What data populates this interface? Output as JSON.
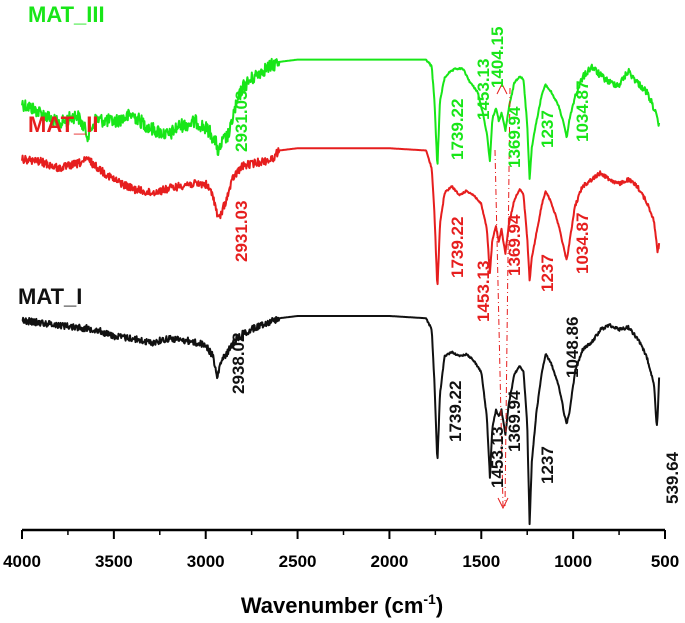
{
  "chart_data": {
    "type": "line",
    "title": "",
    "xlabel": "Wavenumber (cm",
    "xlabel_sup": "-1",
    "xlabel_close": ")",
    "ylabel": "",
    "xlim": [
      4000,
      500
    ],
    "x_ticks": [
      4000,
      3500,
      3000,
      2500,
      2000,
      1500,
      1000,
      500
    ],
    "x_tick_labels": [
      "4000",
      "3500",
      "3000",
      "2500",
      "2000",
      "1500",
      "1000",
      "500"
    ],
    "y_axis_visible": false,
    "legend": "none",
    "series": [
      {
        "name": "MAT_III",
        "color": "#18e618",
        "noise": 1,
        "points": [
          [
            4000,
            0.62
          ],
          [
            3900,
            0.7
          ],
          [
            3800,
            0.8
          ],
          [
            3700,
            0.72
          ],
          [
            3640,
            0.9
          ],
          [
            3600,
            0.76
          ],
          [
            3500,
            0.78
          ],
          [
            3400,
            0.72
          ],
          [
            3300,
            0.84
          ],
          [
            3200,
            0.9
          ],
          [
            3150,
            0.82
          ],
          [
            3050,
            0.78
          ],
          [
            2980,
            0.86
          ],
          [
            2940,
            0.98
          ],
          [
            2931,
            1.06
          ],
          [
            2910,
            0.96
          ],
          [
            2870,
            0.88
          ],
          [
            2850,
            0.72
          ],
          [
            2800,
            0.48
          ],
          [
            2700,
            0.34
          ],
          [
            2600,
            0.26
          ],
          [
            2500,
            0.24
          ],
          [
            2000,
            0.24
          ],
          [
            1800,
            0.24
          ],
          [
            1770,
            0.3
          ],
          [
            1755,
            0.6
          ],
          [
            1739,
            1.18
          ],
          [
            1725,
            0.6
          ],
          [
            1700,
            0.4
          ],
          [
            1680,
            0.36
          ],
          [
            1640,
            0.32
          ],
          [
            1600,
            0.32
          ],
          [
            1560,
            0.44
          ],
          [
            1520,
            0.52
          ],
          [
            1490,
            0.72
          ],
          [
            1470,
            0.88
          ],
          [
            1453,
            1.12
          ],
          [
            1440,
            0.76
          ],
          [
            1420,
            0.66
          ],
          [
            1404,
            0.78
          ],
          [
            1390,
            0.7
          ],
          [
            1369,
            0.86
          ],
          [
            1350,
            0.66
          ],
          [
            1320,
            0.44
          ],
          [
            1290,
            0.38
          ],
          [
            1270,
            0.42
          ],
          [
            1250,
            0.8
          ],
          [
            1237,
            1.28
          ],
          [
            1225,
            1.0
          ],
          [
            1200,
            0.78
          ],
          [
            1170,
            0.54
          ],
          [
            1150,
            0.46
          ],
          [
            1120,
            0.52
          ],
          [
            1080,
            0.64
          ],
          [
            1050,
            0.8
          ],
          [
            1035,
            0.92
          ],
          [
            1020,
            0.76
          ],
          [
            990,
            0.56
          ],
          [
            950,
            0.4
          ],
          [
            900,
            0.3
          ],
          [
            850,
            0.38
          ],
          [
            800,
            0.44
          ],
          [
            750,
            0.46
          ],
          [
            700,
            0.34
          ],
          [
            650,
            0.44
          ],
          [
            600,
            0.52
          ],
          [
            560,
            0.66
          ],
          [
            540,
            0.78
          ],
          [
            530,
            0.82
          ]
        ]
      },
      {
        "name": "MAT_II",
        "color": "#e61e1e",
        "noise": 0.6,
        "points": [
          [
            4000,
            0.12
          ],
          [
            3900,
            0.14
          ],
          [
            3800,
            0.2
          ],
          [
            3700,
            0.16
          ],
          [
            3640,
            0.12
          ],
          [
            3600,
            0.18
          ],
          [
            3500,
            0.3
          ],
          [
            3400,
            0.38
          ],
          [
            3300,
            0.42
          ],
          [
            3200,
            0.38
          ],
          [
            3100,
            0.34
          ],
          [
            3000,
            0.34
          ],
          [
            2960,
            0.44
          ],
          [
            2931,
            0.66
          ],
          [
            2910,
            0.58
          ],
          [
            2880,
            0.44
          ],
          [
            2850,
            0.28
          ],
          [
            2800,
            0.18
          ],
          [
            2700,
            0.14
          ],
          [
            2640,
            0.12
          ],
          [
            2600,
            0.04
          ],
          [
            2500,
            0.02
          ],
          [
            2000,
            0.02
          ],
          [
            1800,
            0.04
          ],
          [
            1770,
            0.2
          ],
          [
            1755,
            0.6
          ],
          [
            1739,
            1.28
          ],
          [
            1725,
            0.7
          ],
          [
            1700,
            0.42
          ],
          [
            1660,
            0.36
          ],
          [
            1620,
            0.44
          ],
          [
            1580,
            0.4
          ],
          [
            1540,
            0.44
          ],
          [
            1500,
            0.52
          ],
          [
            1470,
            0.74
          ],
          [
            1453,
            1.14
          ],
          [
            1440,
            0.84
          ],
          [
            1420,
            0.72
          ],
          [
            1404,
            0.86
          ],
          [
            1390,
            0.74
          ],
          [
            1369,
            0.96
          ],
          [
            1350,
            0.7
          ],
          [
            1320,
            0.48
          ],
          [
            1290,
            0.38
          ],
          [
            1270,
            0.44
          ],
          [
            1250,
            0.82
          ],
          [
            1237,
            1.2
          ],
          [
            1225,
            1.0
          ],
          [
            1200,
            0.78
          ],
          [
            1170,
            0.52
          ],
          [
            1150,
            0.4
          ],
          [
            1120,
            0.5
          ],
          [
            1080,
            0.7
          ],
          [
            1050,
            0.92
          ],
          [
            1035,
            1.02
          ],
          [
            1020,
            0.86
          ],
          [
            990,
            0.54
          ],
          [
            950,
            0.36
          ],
          [
            900,
            0.3
          ],
          [
            850,
            0.24
          ],
          [
            800,
            0.3
          ],
          [
            750,
            0.34
          ],
          [
            700,
            0.3
          ],
          [
            650,
            0.36
          ],
          [
            600,
            0.5
          ],
          [
            560,
            0.66
          ],
          [
            540,
            0.96
          ],
          [
            530,
            0.84
          ]
        ]
      },
      {
        "name": "MAT_I",
        "color": "#111111",
        "noise": 0.5,
        "points": [
          [
            4000,
            0.04
          ],
          [
            3900,
            0.06
          ],
          [
            3800,
            0.08
          ],
          [
            3700,
            0.1
          ],
          [
            3600,
            0.12
          ],
          [
            3500,
            0.18
          ],
          [
            3400,
            0.2
          ],
          [
            3300,
            0.24
          ],
          [
            3200,
            0.2
          ],
          [
            3100,
            0.22
          ],
          [
            3000,
            0.26
          ],
          [
            2960,
            0.36
          ],
          [
            2938,
            0.56
          ],
          [
            2920,
            0.42
          ],
          [
            2880,
            0.32
          ],
          [
            2850,
            0.24
          ],
          [
            2800,
            0.16
          ],
          [
            2700,
            0.08
          ],
          [
            2600,
            0.02
          ],
          [
            2500,
            0.0
          ],
          [
            2000,
            0.0
          ],
          [
            1800,
            0.02
          ],
          [
            1770,
            0.12
          ],
          [
            1755,
            0.6
          ],
          [
            1739,
            1.32
          ],
          [
            1725,
            0.7
          ],
          [
            1700,
            0.36
          ],
          [
            1660,
            0.32
          ],
          [
            1620,
            0.36
          ],
          [
            1580,
            0.34
          ],
          [
            1540,
            0.4
          ],
          [
            1500,
            0.5
          ],
          [
            1470,
            0.9
          ],
          [
            1453,
            1.44
          ],
          [
            1440,
            1.0
          ],
          [
            1420,
            0.84
          ],
          [
            1404,
            0.9
          ],
          [
            1390,
            0.84
          ],
          [
            1369,
            1.06
          ],
          [
            1350,
            0.78
          ],
          [
            1320,
            0.52
          ],
          [
            1290,
            0.44
          ],
          [
            1270,
            0.5
          ],
          [
            1250,
            0.96
          ],
          [
            1237,
            1.86
          ],
          [
            1225,
            1.3
          ],
          [
            1200,
            0.86
          ],
          [
            1170,
            0.5
          ],
          [
            1150,
            0.34
          ],
          [
            1120,
            0.42
          ],
          [
            1080,
            0.62
          ],
          [
            1060,
            0.76
          ],
          [
            1049,
            0.88
          ],
          [
            1035,
            0.96
          ],
          [
            1020,
            0.86
          ],
          [
            990,
            0.5
          ],
          [
            950,
            0.3
          ],
          [
            900,
            0.24
          ],
          [
            850,
            0.12
          ],
          [
            800,
            0.08
          ],
          [
            750,
            0.12
          ],
          [
            700,
            0.1
          ],
          [
            650,
            0.2
          ],
          [
            600,
            0.36
          ],
          [
            560,
            0.6
          ],
          [
            545,
            1.0
          ],
          [
            540,
            0.9
          ],
          [
            530,
            0.46
          ]
        ]
      }
    ],
    "peak_labels": [
      {
        "series": "MAT_III",
        "labels": [
          "2931.03",
          "1739.22",
          "1453.13",
          "1404.15",
          "1369.94",
          "1237",
          "1034.87"
        ]
      },
      {
        "series": "MAT_II",
        "labels": [
          "2931.03",
          "1739.22",
          "1453.13",
          "1369.94",
          "1237",
          "1034.87"
        ]
      },
      {
        "series": "MAT_I",
        "labels": [
          "2938.02",
          "1739.22",
          "1453.13",
          "1369.94",
          "1237",
          "1048.86",
          "539.64"
        ]
      }
    ],
    "annotations": [
      "dash-dot red lines linking the 1453 and 1369 cm-1 bands across spectra"
    ]
  }
}
